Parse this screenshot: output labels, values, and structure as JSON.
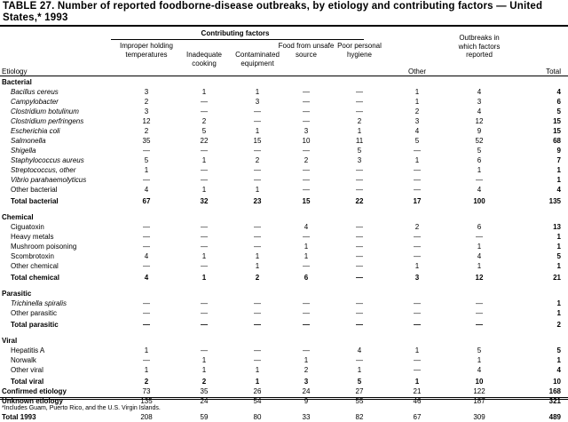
{
  "title": "TABLE 27. Number of reported foodborne-disease outbreaks, by etiology and contributing factors — United States,* 1993",
  "header": {
    "contributing_factors": "Contributing factors",
    "etiology": "Etiology",
    "columns": [
      "Improper holding temperatures",
      "Inadequate cooking",
      "Contaminated equipment",
      "Food from unsafe source",
      "Poor personal hygiene",
      "Other",
      "Outbreaks in which factors reported",
      "Total"
    ]
  },
  "rows": [
    {
      "type": "sec",
      "label": "Bacterial"
    },
    {
      "type": "item",
      "label": "Bacillus cereus",
      "italic": true,
      "values": [
        "3",
        "1",
        "1",
        "—",
        "—",
        "1",
        "4",
        "4"
      ]
    },
    {
      "type": "item",
      "label": "Campylobacter",
      "italic": true,
      "values": [
        "2",
        "—",
        "3",
        "—",
        "—",
        "1",
        "3",
        "6"
      ]
    },
    {
      "type": "item",
      "label": "Clostridium botulinum",
      "italic": true,
      "values": [
        "3",
        "—",
        "—",
        "—",
        "—",
        "2",
        "4",
        "5"
      ]
    },
    {
      "type": "item",
      "label": "Clostridium perfringens",
      "italic": true,
      "values": [
        "12",
        "2",
        "—",
        "—",
        "2",
        "3",
        "12",
        "15"
      ]
    },
    {
      "type": "item",
      "label": "Escherichia coli",
      "italic": true,
      "values": [
        "2",
        "5",
        "1",
        "3",
        "1",
        "4",
        "9",
        "15"
      ]
    },
    {
      "type": "item",
      "label": "Salmonella",
      "italic": true,
      "values": [
        "35",
        "22",
        "15",
        "10",
        "11",
        "5",
        "52",
        "68"
      ]
    },
    {
      "type": "item",
      "label": "Shigella",
      "italic": true,
      "values": [
        "—",
        "—",
        "—",
        "—",
        "5",
        "—",
        "5",
        "9"
      ]
    },
    {
      "type": "item",
      "label": "Staphylococcus aureus",
      "italic": true,
      "values": [
        "5",
        "1",
        "2",
        "2",
        "3",
        "1",
        "6",
        "7"
      ]
    },
    {
      "type": "item",
      "label": "Streptococcus, other",
      "italic": true,
      "values": [
        "1",
        "—",
        "—",
        "—",
        "—",
        "—",
        "1",
        "1"
      ]
    },
    {
      "type": "item",
      "label": "Vibrio parahaemolyticus",
      "italic": true,
      "values": [
        "—",
        "—",
        "—",
        "—",
        "—",
        "—",
        "—",
        "1"
      ]
    },
    {
      "type": "item",
      "label": "Other bacterial",
      "values": [
        "4",
        "1",
        "1",
        "—",
        "—",
        "—",
        "4",
        "4"
      ]
    },
    {
      "type": "tot",
      "label": "Total bacterial",
      "values": [
        "67",
        "32",
        "23",
        "15",
        "22",
        "17",
        "100",
        "135"
      ]
    },
    {
      "type": "sec",
      "label": "Chemical",
      "gap": true
    },
    {
      "type": "item",
      "label": "Ciguatoxin",
      "values": [
        "—",
        "—",
        "—",
        "4",
        "—",
        "2",
        "6",
        "13"
      ]
    },
    {
      "type": "item",
      "label": "Heavy metals",
      "values": [
        "—",
        "—",
        "—",
        "—",
        "—",
        "—",
        "—",
        "1"
      ]
    },
    {
      "type": "item",
      "label": "Mushroom poisoning",
      "values": [
        "—",
        "—",
        "—",
        "1",
        "—",
        "—",
        "1",
        "1"
      ]
    },
    {
      "type": "item",
      "label": "Scombrotoxin",
      "values": [
        "4",
        "1",
        "1",
        "1",
        "—",
        "—",
        "4",
        "5"
      ]
    },
    {
      "type": "item",
      "label": "Other chemical",
      "values": [
        "—",
        "—",
        "1",
        "—",
        "—",
        "1",
        "1",
        "1"
      ]
    },
    {
      "type": "tot",
      "label": "Total chemical",
      "values": [
        "4",
        "1",
        "2",
        "6",
        "—",
        "3",
        "12",
        "21"
      ]
    },
    {
      "type": "sec",
      "label": "Parasitic",
      "gap": true
    },
    {
      "type": "item",
      "label": "Trichinella spiralis",
      "italic": true,
      "values": [
        "—",
        "—",
        "—",
        "—",
        "—",
        "—",
        "—",
        "1"
      ]
    },
    {
      "type": "item",
      "label": "Other parasitic",
      "values": [
        "—",
        "—",
        "—",
        "—",
        "—",
        "—",
        "—",
        "1"
      ]
    },
    {
      "type": "tot",
      "label": "Total parasitic",
      "values": [
        "—",
        "—",
        "—",
        "—",
        "—",
        "—",
        "—",
        "2"
      ]
    },
    {
      "type": "sec",
      "label": "Viral",
      "gap": true
    },
    {
      "type": "item",
      "label": "Hepatitis A",
      "values": [
        "1",
        "—",
        "—",
        "—",
        "4",
        "1",
        "5",
        "5"
      ]
    },
    {
      "type": "item",
      "label": "Norwalk",
      "values": [
        "—",
        "1",
        "—",
        "1",
        "—",
        "—",
        "1",
        "1"
      ]
    },
    {
      "type": "item",
      "label": "Other viral",
      "values": [
        "1",
        "1",
        "1",
        "2",
        "1",
        "—",
        "4",
        "4"
      ]
    },
    {
      "type": "tot",
      "label": "Total viral",
      "values": [
        "2",
        "2",
        "1",
        "3",
        "5",
        "1",
        "10",
        "10"
      ]
    },
    {
      "type": "top",
      "label": "Confirmed etiology",
      "values": [
        "73",
        "35",
        "26",
        "24",
        "27",
        "21",
        "122",
        "168"
      ]
    },
    {
      "type": "top",
      "label": "Unknown etiology",
      "values": [
        "135",
        "24",
        "54",
        "9",
        "55",
        "46",
        "187",
        "321"
      ]
    },
    {
      "type": "top",
      "label": "Total 1993",
      "gap": true,
      "values": [
        "208",
        "59",
        "80",
        "33",
        "82",
        "67",
        "309",
        "489"
      ]
    }
  ],
  "footnote": "*Includes Guam, Puerto Rico, and the U.S. Virgin Islands."
}
